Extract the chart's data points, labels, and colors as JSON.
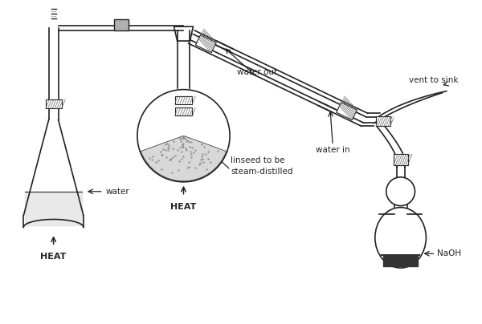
{
  "background_color": "#ffffff",
  "line_color": "#222222",
  "text_color": "#222222",
  "labels": {
    "water": "water",
    "heat1": "HEAT",
    "heat2": "HEAT",
    "water_out": "water out",
    "water_in": "water in",
    "linseed": "linseed to be\nsteam-distilled",
    "vent": "vent to sink",
    "naoh": "NaOH"
  },
  "figsize": [
    6.0,
    4.04
  ],
  "dpi": 100
}
